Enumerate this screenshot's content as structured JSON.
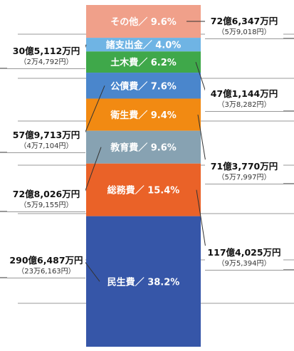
{
  "chart_data": {
    "type": "bar",
    "stacked": true,
    "segments": [
      {
        "name": "その他",
        "value": 9.6,
        "pct_label": "9.6%",
        "amount": "72億6,347万円",
        "per_capita": "（5万9,018円）",
        "color": "#f0a08a"
      },
      {
        "name": "諸支出金",
        "value": 4.0,
        "pct_label": "4.0%",
        "amount": "30億5,112万円",
        "per_capita": "（2万4,792円）",
        "color": "#6fb4e4"
      },
      {
        "name": "土木費",
        "value": 6.2,
        "pct_label": "6.2%",
        "amount": "47億1,144万円",
        "per_capita": "（3万8,282円）",
        "color": "#3fa84a"
      },
      {
        "name": "公債費",
        "value": 7.6,
        "pct_label": "7.6%",
        "amount": "57億9,713万円",
        "per_capita": "（4万7,104円）",
        "color": "#4a86cc"
      },
      {
        "name": "衛生費",
        "value": 9.4,
        "pct_label": "9.4%",
        "amount": "71億3,770万円",
        "per_capita": "（5万7,997円）",
        "color": "#f28a12"
      },
      {
        "name": "教育費",
        "value": 9.6,
        "pct_label": "9.6%",
        "amount": "72億8,026万円",
        "per_capita": "（5万9,155円）",
        "color": "#87a2b2"
      },
      {
        "name": "総務費",
        "value": 15.4,
        "pct_label": "15.4%",
        "amount": "117億4,025万円",
        "per_capita": "（9万5,394円）",
        "color": "#ea6228"
      },
      {
        "name": "民生費",
        "value": 38.2,
        "pct_label": "38.2%",
        "amount": "290億6,487万円",
        "per_capita": "（23万6,163円）",
        "color": "#3656a8"
      }
    ],
    "separator": "／",
    "grid": true
  }
}
